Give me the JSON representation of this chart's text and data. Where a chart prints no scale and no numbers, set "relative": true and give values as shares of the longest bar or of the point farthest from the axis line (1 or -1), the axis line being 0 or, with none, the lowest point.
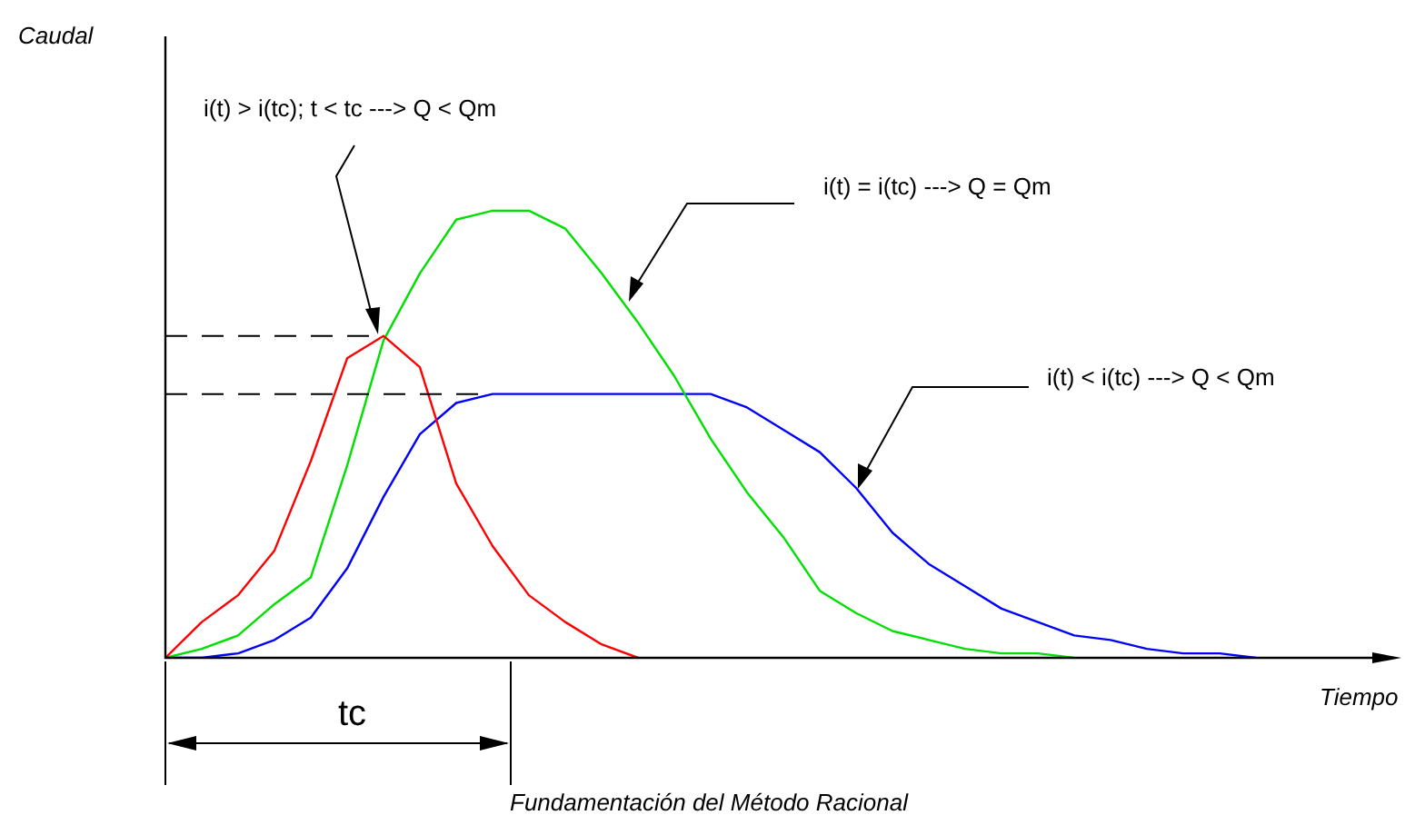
{
  "chart_data": {
    "type": "line",
    "relative": true,
    "title": "Fundamentación del Método Racional",
    "xlabel": "Tiempo",
    "categories": [
      null,
      null,
      null,
      null,
      null,
      null,
      null,
      null,
      null,
      null,
      null,
      null,
      null,
      null,
      null,
      null,
      null,
      null,
      null,
      null,
      null,
      null,
      null,
      null,
      null,
      null,
      null,
      null,
      null,
      null,
      null,
      null,
      null,
      null,
      null
    ],
    "series": [
      {
        "color": "#ff0000",
        "values": [
          0,
          0.08,
          0.14,
          0.24,
          0.44,
          0.67,
          0.72,
          0.65,
          0.39,
          0.25,
          0.14,
          0.08,
          0.03,
          0,
          null,
          null,
          null,
          null,
          null,
          null,
          null,
          null,
          null,
          null,
          null,
          null,
          null,
          null,
          null,
          null,
          null,
          null,
          null,
          null,
          null
        ]
      },
      {
        "color": "#00e000",
        "values": [
          0,
          0.02,
          0.05,
          0.12,
          0.18,
          0.43,
          0.71,
          0.86,
          0.98,
          1.0,
          1.0,
          0.96,
          0.86,
          0.75,
          0.63,
          0.49,
          0.37,
          0.27,
          0.15,
          0.1,
          0.06,
          0.04,
          0.02,
          0.01,
          0.01,
          0,
          null,
          null,
          null,
          null,
          null,
          null,
          null,
          null,
          null
        ]
      },
      {
        "color": "#0000ff",
        "values": [
          0,
          0,
          0.01,
          0.04,
          0.09,
          0.2,
          0.36,
          0.5,
          0.57,
          0.59,
          0.59,
          0.59,
          0.59,
          0.59,
          0.59,
          0.59,
          0.56,
          0.51,
          0.46,
          0.38,
          0.28,
          0.21,
          0.16,
          0.11,
          0.08,
          0.05,
          0.04,
          0.02,
          0.01,
          0.01,
          0,
          null,
          null,
          null,
          null
        ]
      }
    ],
    "ref_lines": [
      {
        "axis": "y",
        "value": 0.72,
        "color": "#000000",
        "line_style": "dashed"
      },
      {
        "axis": "y",
        "value": 0.59,
        "color": "#000000",
        "line_style": "dashed"
      }
    ],
    "annotations": [
      "Caudal",
      "i(t) > i(tc); t < tc ---> Q < Qm",
      "i(t) = i(tc) ---> Q = Qm",
      "i(t) < i(tc) ---> Q < Qm",
      "tc"
    ],
    "legend": false,
    "marker": "none",
    "line_style": "solid"
  }
}
